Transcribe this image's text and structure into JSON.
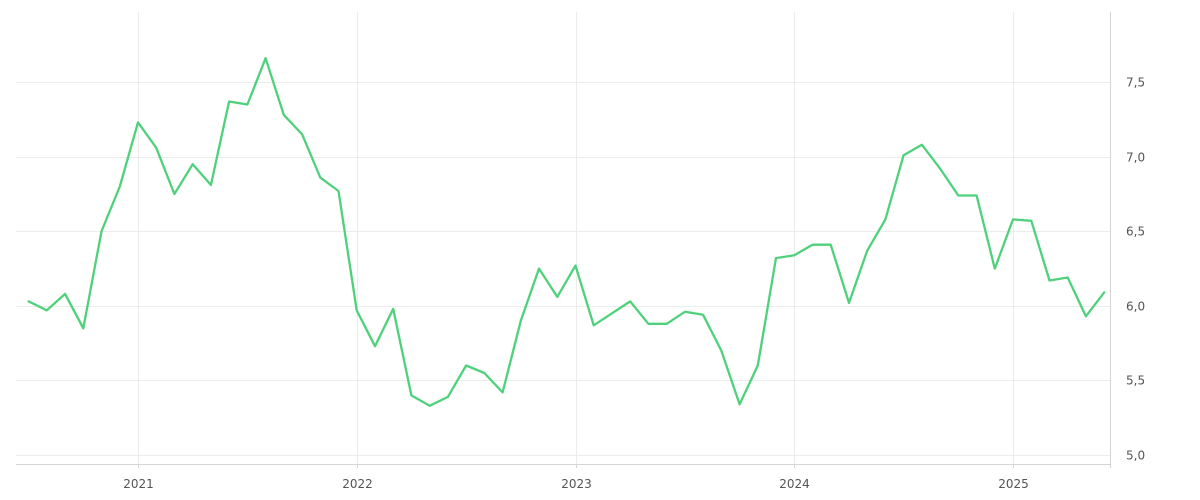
{
  "chart_data": {
    "type": "line",
    "x": [
      "2020-07",
      "2020-08",
      "2020-09",
      "2020-10",
      "2020-11",
      "2020-12",
      "2021-01",
      "2021-02",
      "2021-03",
      "2021-04",
      "2021-05",
      "2021-06",
      "2021-07",
      "2021-08",
      "2021-09",
      "2021-10",
      "2021-11",
      "2021-12",
      "2022-01",
      "2022-02",
      "2022-03",
      "2022-04",
      "2022-05",
      "2022-06",
      "2022-07",
      "2022-08",
      "2022-09",
      "2022-10",
      "2022-11",
      "2022-12",
      "2023-01",
      "2023-02",
      "2023-03",
      "2023-04",
      "2023-05",
      "2023-06",
      "2023-07",
      "2023-08",
      "2023-09",
      "2023-10",
      "2023-11",
      "2023-12",
      "2024-01",
      "2024-02",
      "2024-03",
      "2024-04",
      "2024-05",
      "2024-06",
      "2024-07",
      "2024-08",
      "2024-09",
      "2024-10",
      "2024-11",
      "2024-12",
      "2025-01",
      "2025-02",
      "2025-03",
      "2025-04",
      "2025-05",
      "2025-06"
    ],
    "series": [
      {
        "values": [
          6.03,
          5.97,
          6.08,
          5.85,
          6.5,
          6.8,
          7.23,
          7.06,
          6.75,
          6.95,
          6.81,
          7.37,
          7.35,
          7.66,
          7.28,
          7.15,
          6.86,
          6.77,
          5.97,
          5.73,
          5.98,
          5.4,
          5.33,
          5.39,
          5.6,
          5.55,
          5.42,
          5.9,
          6.25,
          6.06,
          6.27,
          5.87,
          5.95,
          6.03,
          5.88,
          5.88,
          5.96,
          5.94,
          5.7,
          5.34,
          5.6,
          6.32,
          6.34,
          6.41,
          6.41,
          6.02,
          6.37,
          6.58,
          7.01,
          7.08,
          6.92,
          6.74,
          6.74,
          6.25,
          6.58,
          6.57,
          6.17,
          6.19,
          5.93,
          6.09
        ]
      }
    ],
    "y_ticks": [
      "5,0",
      "5,5",
      "6,0",
      "6,5",
      "7,0",
      "7,5"
    ],
    "x_ticks": [
      "2021",
      "2022",
      "2023",
      "2024",
      "2025"
    ],
    "ylim": [
      4.94,
      7.97
    ],
    "y_axis_side": "right",
    "grid": true,
    "line_color": "#4fd17c"
  }
}
